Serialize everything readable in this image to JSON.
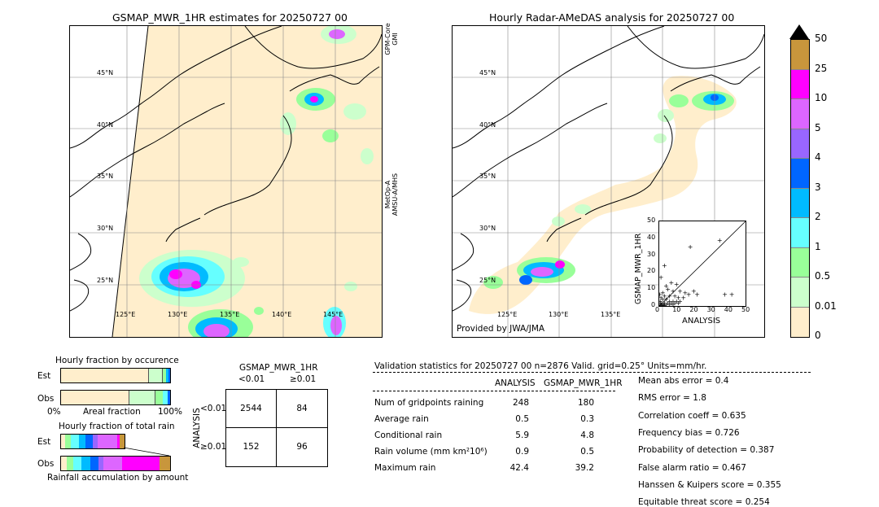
{
  "left_map": {
    "title": "GSMAP_MWR_1HR estimates for 20250727 00",
    "lat_labels": [
      "45°N",
      "40°N",
      "35°N",
      "30°N",
      "25°N"
    ],
    "lon_labels": [
      "125°E",
      "130°E",
      "135°E",
      "140°E",
      "145°E"
    ],
    "side_label_top": "GPM-Core GMI",
    "side_label_bottom": "MetOp-A AMSU-A/MHS"
  },
  "right_map": {
    "title": "Hourly Radar-AMeDAS analysis for 20250727 00",
    "lat_labels": [
      "45°N",
      "40°N",
      "35°N",
      "30°N",
      "25°N"
    ],
    "lon_labels": [
      "125°E",
      "130°E",
      "135°E"
    ],
    "credit": "Provided by JWA/JMA"
  },
  "colorbar": {
    "labels": [
      "50",
      "25",
      "10",
      "5",
      "4",
      "3",
      "2",
      "1",
      "0.5",
      "0.01",
      "0"
    ],
    "colors": [
      "#c8963c",
      "#ff00ff",
      "#dd66ff",
      "#9966ff",
      "#0066ff",
      "#00bbff",
      "#66ffff",
      "#99ff99",
      "#ccffcc",
      "#ffeecc"
    ]
  },
  "scatter": {
    "ylabel": "GSMAP_MWR_1HR",
    "xlabel": "ANALYSIS",
    "x_ticks": [
      "0",
      "10",
      "20",
      "30",
      "40",
      "50"
    ],
    "y_ticks": [
      "0",
      "10",
      "20",
      "30",
      "40",
      "50"
    ],
    "axis_range": [
      0,
      50
    ],
    "points": [
      [
        35,
        39
      ],
      [
        18,
        35
      ],
      [
        3,
        24
      ],
      [
        1,
        17
      ],
      [
        7,
        14
      ],
      [
        10,
        13
      ],
      [
        5,
        10
      ],
      [
        8,
        9
      ],
      [
        12,
        9
      ],
      [
        15,
        8
      ],
      [
        17,
        7
      ],
      [
        20,
        9
      ],
      [
        22,
        7
      ],
      [
        38,
        7
      ],
      [
        42,
        7
      ],
      [
        3,
        6
      ],
      [
        6,
        6
      ],
      [
        9,
        6
      ],
      [
        11,
        5
      ],
      [
        14,
        5
      ],
      [
        2,
        4
      ],
      [
        4,
        4
      ],
      [
        6,
        3
      ],
      [
        8,
        3
      ],
      [
        10,
        3
      ],
      [
        12,
        3
      ],
      [
        1,
        2
      ],
      [
        3,
        2
      ],
      [
        5,
        2
      ],
      [
        7,
        2
      ],
      [
        9,
        2
      ],
      [
        11,
        2
      ],
      [
        0.5,
        1
      ],
      [
        1.5,
        1
      ],
      [
        2.5,
        1
      ],
      [
        4,
        1
      ],
      [
        6,
        1
      ],
      [
        8,
        1
      ],
      [
        1,
        0.5
      ],
      [
        2,
        0.5
      ],
      [
        3,
        0.5
      ],
      [
        0.5,
        3
      ],
      [
        1,
        5
      ],
      [
        2,
        8
      ],
      [
        4,
        12
      ],
      [
        0.3,
        7
      ]
    ]
  },
  "occurrence": {
    "title": "Hourly fraction by occurence",
    "row_labels": [
      "Est",
      "Obs"
    ],
    "axis_left": "0%",
    "axis_mid": "Areal fraction",
    "axis_right": "100%"
  },
  "total_rain": {
    "title": "Hourly fraction of total rain",
    "row_labels": [
      "Est",
      "Obs"
    ],
    "footer": "Rainfall accumulation by amount"
  },
  "contingency": {
    "title": "GSMAP_MWR_1HR",
    "col_labels": [
      "<0.01",
      "≥0.01"
    ],
    "row_axis": "ANALYSIS",
    "row_labels": [
      "<0.01",
      "≥0.01"
    ],
    "cells": [
      [
        "2544",
        "84"
      ],
      [
        "152",
        "96"
      ]
    ]
  },
  "validation": {
    "header": "Validation statistics for 20250727 00  n=2876 Valid. grid=0.25° Units=mm/hr.",
    "col_analysis": "ANALYSIS",
    "col_gsmap": "GSMAP_MWR_1HR",
    "rows": [
      {
        "label": "Num of gridpoints raining",
        "analysis": "248",
        "gsmap": "180"
      },
      {
        "label": "Average rain",
        "analysis": "0.5",
        "gsmap": "0.3"
      },
      {
        "label": "Conditional rain",
        "analysis": "5.9",
        "gsmap": "4.8"
      },
      {
        "label": "Rain volume (mm km²10⁶)",
        "analysis": "0.9",
        "gsmap": "0.5"
      },
      {
        "label": "Maximum rain",
        "analysis": "42.4",
        "gsmap": "39.2"
      }
    ],
    "scores": [
      "Mean abs error =    0.4",
      "RMS error =    1.8",
      "Correlation coeff =  0.635",
      "Frequency bias =  0.726",
      "Probability of detection =  0.387",
      "False alarm ratio =  0.467",
      "Hanssen & Kuipers score =  0.355",
      "Equitable threat score =  0.254"
    ]
  }
}
